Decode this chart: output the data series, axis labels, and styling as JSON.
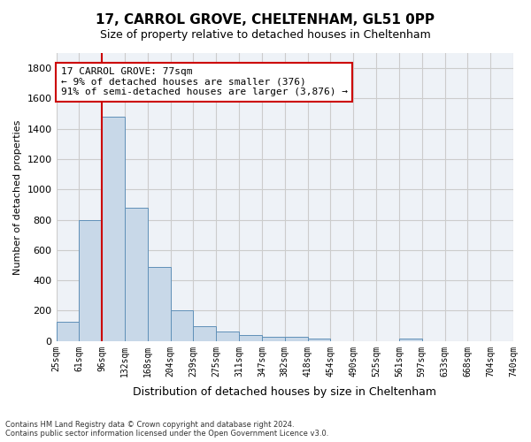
{
  "title": "17, CARROL GROVE, CHELTENHAM, GL51 0PP",
  "subtitle": "Size of property relative to detached houses in Cheltenham",
  "xlabel": "Distribution of detached houses by size in Cheltenham",
  "ylabel": "Number of detached properties",
  "bar_color": "#c8d8e8",
  "bar_edge_color": "#6090b8",
  "bar_values": [
    125,
    800,
    1480,
    880,
    490,
    205,
    100,
    65,
    40,
    30,
    25,
    15,
    0,
    0,
    0,
    15,
    0,
    0,
    0,
    0
  ],
  "categories": [
    "25sqm",
    "61sqm",
    "96sqm",
    "132sqm",
    "168sqm",
    "204sqm",
    "239sqm",
    "275sqm",
    "311sqm",
    "347sqm",
    "382sqm",
    "418sqm",
    "454sqm",
    "490sqm",
    "525sqm",
    "561sqm",
    "597sqm",
    "633sqm",
    "668sqm",
    "704sqm",
    "740sqm"
  ],
  "ylim": [
    0,
    1900
  ],
  "yticks": [
    0,
    200,
    400,
    600,
    800,
    1000,
    1200,
    1400,
    1600,
    1800
  ],
  "vline_color": "#cc0000",
  "annotation_text": "17 CARROL GROVE: 77sqm\n← 9% of detached houses are smaller (376)\n91% of semi-detached houses are larger (3,876) →",
  "annotation_box_color": "#ffffff",
  "annotation_box_edge": "#cc0000",
  "footer_line1": "Contains HM Land Registry data © Crown copyright and database right 2024.",
  "footer_line2": "Contains public sector information licensed under the Open Government Licence v3.0.",
  "background_color": "#eef2f7",
  "grid_color": "#cccccc"
}
